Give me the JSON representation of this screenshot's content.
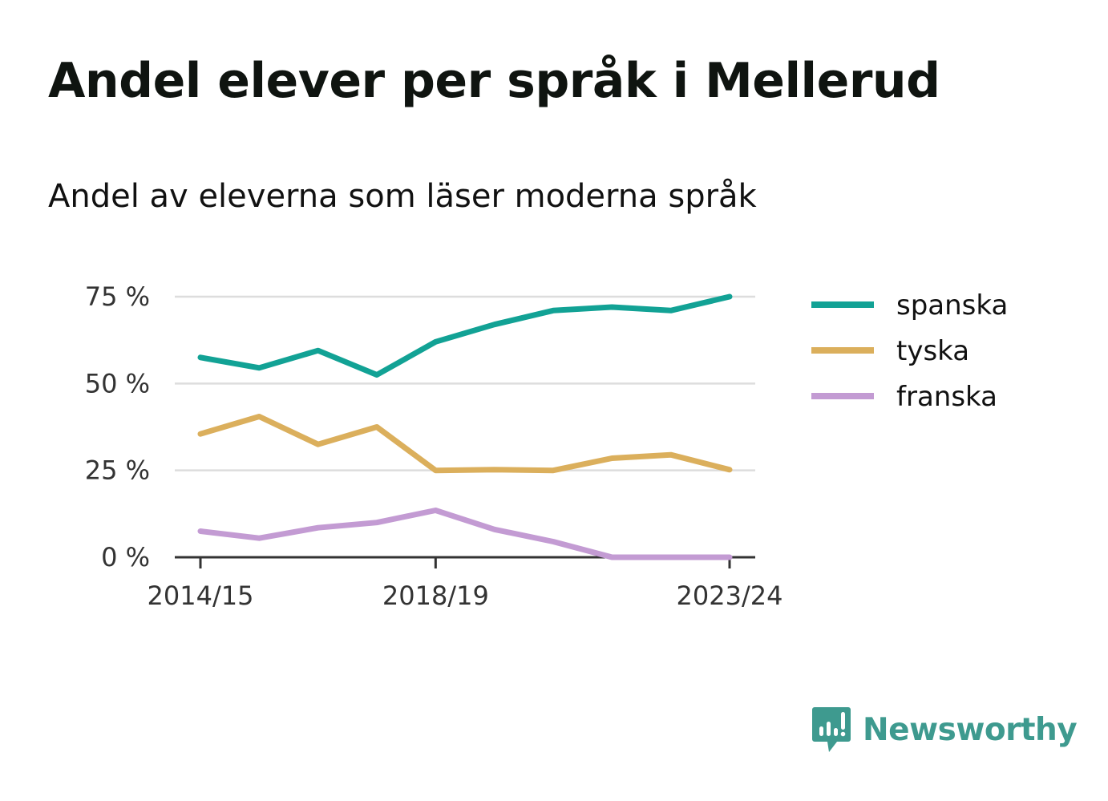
{
  "title": "Andel elever per språk i Mellerud",
  "subtitle": "Andel av eleverna som läser moderna språk",
  "brand": {
    "name": "Newsworthy",
    "icon": "newsworthy-logo-icon",
    "color": "#3e9a8f"
  },
  "chart_data": {
    "type": "line",
    "title": "Andel elever per språk i Mellerud",
    "subtitle": "Andel av eleverna som läser moderna språk",
    "x": [
      "2014/15",
      "2015/16",
      "2016/17",
      "2017/18",
      "2018/19",
      "2019/20",
      "2020/21",
      "2021/22",
      "2022/23",
      "2023/24"
    ],
    "x_tick_labels": [
      "2014/15",
      "2018/19",
      "2023/24"
    ],
    "y_ticks": [
      0,
      25,
      50,
      75
    ],
    "y_tick_labels": [
      "0 %",
      "25 %",
      "50 %",
      "75 %"
    ],
    "ylim": [
      0,
      75
    ],
    "grid": true,
    "legend_position": "right",
    "series": [
      {
        "name": "spanska",
        "color": "#12a295",
        "values": [
          57.5,
          54.5,
          59.5,
          52.5,
          62,
          67,
          71,
          72,
          71,
          75
        ]
      },
      {
        "name": "tyska",
        "color": "#dbaf5c",
        "values": [
          35.5,
          40.5,
          32.5,
          37.5,
          25,
          25.2,
          25,
          28.5,
          29.5,
          25.2
        ]
      },
      {
        "name": "franska",
        "color": "#c39bd3",
        "values": [
          7.5,
          5.5,
          8.5,
          10,
          13.5,
          8,
          4.5,
          0,
          0,
          0
        ]
      }
    ]
  }
}
